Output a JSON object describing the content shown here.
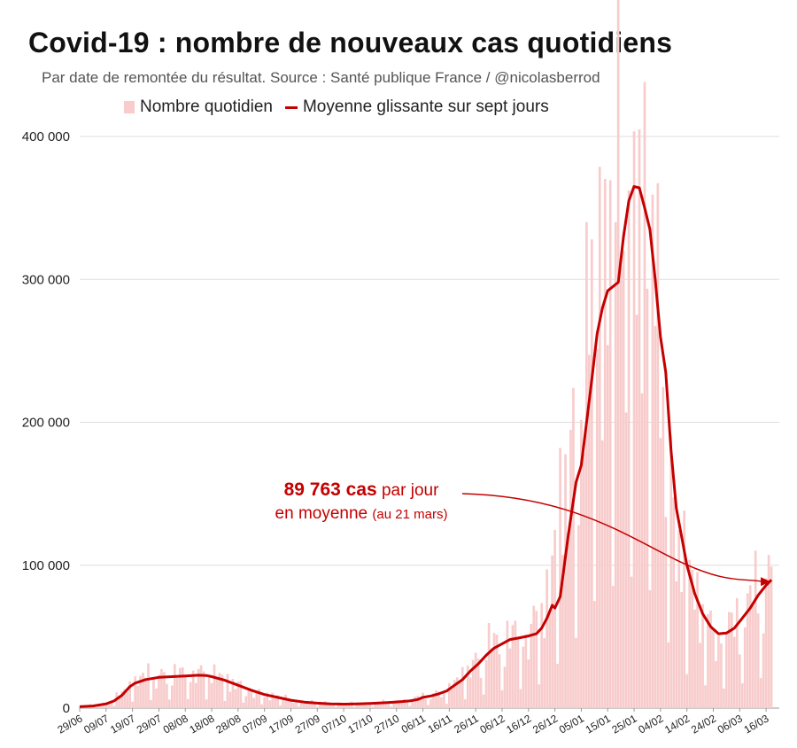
{
  "title": "Covid-19 : nombre de nouveaux cas quotidiens",
  "subtitle": "Par date de remontée du résultat. Source : Santé publique France / @nicolasberrod",
  "legend": {
    "bars": "Nombre quotidien",
    "line": "Moyenne glissante sur sept jours"
  },
  "annotation": {
    "value": "89 763 cas",
    "text1": "par jour",
    "text2": "en moyenne",
    "note": "(au 21 mars)"
  },
  "colors": {
    "bar": "#f8cccc",
    "line": "#c40000",
    "grid": "#dddddd"
  },
  "chart_data": {
    "type": "bar",
    "title": "Covid-19 : nombre de nouveaux cas quotidiens",
    "ylim": [
      0,
      400000
    ],
    "yticks": [
      {
        "value": 0,
        "label": "0"
      },
      {
        "value": 100000,
        "label": "100 000"
      },
      {
        "value": 200000,
        "label": "200 000"
      },
      {
        "value": 300000,
        "label": "300 000"
      },
      {
        "value": 400000,
        "label": "400 000"
      }
    ],
    "xticks": [
      {
        "day": 0,
        "label": "29/06"
      },
      {
        "day": 10,
        "label": "09/07"
      },
      {
        "day": 20,
        "label": "19/07"
      },
      {
        "day": 30,
        "label": "29/07"
      },
      {
        "day": 40,
        "label": "08/08"
      },
      {
        "day": 50,
        "label": "18/08"
      },
      {
        "day": 60,
        "label": "28/08"
      },
      {
        "day": 70,
        "label": "07/09"
      },
      {
        "day": 80,
        "label": "17/09"
      },
      {
        "day": 90,
        "label": "27/09"
      },
      {
        "day": 100,
        "label": "07/10"
      },
      {
        "day": 110,
        "label": "17/10"
      },
      {
        "day": 120,
        "label": "27/10"
      },
      {
        "day": 130,
        "label": "06/11"
      },
      {
        "day": 140,
        "label": "16/11"
      },
      {
        "day": 150,
        "label": "26/11"
      },
      {
        "day": 160,
        "label": "06/12"
      },
      {
        "day": 170,
        "label": "16/12"
      },
      {
        "day": 180,
        "label": "26/12"
      },
      {
        "day": 190,
        "label": "05/01"
      },
      {
        "day": 200,
        "label": "15/01"
      },
      {
        "day": 210,
        "label": "25/01"
      },
      {
        "day": 220,
        "label": "04/02"
      },
      {
        "day": 230,
        "label": "14/02"
      },
      {
        "day": 240,
        "label": "24/02"
      },
      {
        "day": 250,
        "label": "06/03"
      },
      {
        "day": 260,
        "label": "16/03"
      }
    ],
    "xmax_day": 265,
    "series": [
      {
        "name": "Moyenne glissante sur sept jours",
        "type": "line",
        "points": [
          [
            0,
            1000
          ],
          [
            5,
            1500
          ],
          [
            10,
            3000
          ],
          [
            13,
            5000
          ],
          [
            16,
            9000
          ],
          [
            19,
            15000
          ],
          [
            21,
            17500
          ],
          [
            25,
            20000
          ],
          [
            30,
            21500
          ],
          [
            35,
            22000
          ],
          [
            40,
            22500
          ],
          [
            45,
            23000
          ],
          [
            48,
            22800
          ],
          [
            50,
            22000
          ],
          [
            55,
            19500
          ],
          [
            60,
            16000
          ],
          [
            65,
            12500
          ],
          [
            70,
            9500
          ],
          [
            75,
            7500
          ],
          [
            80,
            5500
          ],
          [
            85,
            4200
          ],
          [
            90,
            3500
          ],
          [
            95,
            3000
          ],
          [
            100,
            2800
          ],
          [
            105,
            2900
          ],
          [
            110,
            3200
          ],
          [
            115,
            3700
          ],
          [
            120,
            4300
          ],
          [
            123,
            4700
          ],
          [
            125,
            5000
          ],
          [
            128,
            6000
          ],
          [
            130,
            7500
          ],
          [
            133,
            8500
          ],
          [
            136,
            10000
          ],
          [
            139,
            12000
          ],
          [
            142,
            16000
          ],
          [
            145,
            20000
          ],
          [
            148,
            26000
          ],
          [
            151,
            31000
          ],
          [
            154,
            37000
          ],
          [
            157,
            42000
          ],
          [
            160,
            45000
          ],
          [
            163,
            48000
          ],
          [
            166,
            49000
          ],
          [
            170,
            50500
          ],
          [
            173,
            52000
          ],
          [
            175,
            56000
          ],
          [
            177,
            63000
          ],
          [
            179,
            72000
          ],
          [
            180,
            70000
          ],
          [
            182,
            78000
          ],
          [
            185,
            120000
          ],
          [
            188,
            158000
          ],
          [
            190,
            170000
          ],
          [
            192,
            200000
          ],
          [
            194,
            230000
          ],
          [
            196,
            262000
          ],
          [
            198,
            280000
          ],
          [
            200,
            292000
          ],
          [
            202,
            295000
          ],
          [
            204,
            298000
          ],
          [
            206,
            330000
          ],
          [
            208,
            355000
          ],
          [
            210,
            365000
          ],
          [
            212,
            364000
          ],
          [
            214,
            350000
          ],
          [
            216,
            335000
          ],
          [
            218,
            300000
          ],
          [
            220,
            260000
          ],
          [
            222,
            235000
          ],
          [
            224,
            180000
          ],
          [
            226,
            140000
          ],
          [
            228,
            120000
          ],
          [
            230,
            100000
          ],
          [
            233,
            80000
          ],
          [
            236,
            66000
          ],
          [
            239,
            57000
          ],
          [
            242,
            52000
          ],
          [
            245,
            52500
          ],
          [
            248,
            56000
          ],
          [
            251,
            63000
          ],
          [
            254,
            70000
          ],
          [
            257,
            79000
          ],
          [
            260,
            86000
          ],
          [
            262,
            89763
          ]
        ]
      },
      {
        "name": "Nombre quotidien",
        "type": "bar",
        "profile": [
          [
            0,
            1200
          ],
          [
            10,
            3500
          ],
          [
            16,
            10000
          ],
          [
            20,
            18000
          ],
          [
            25,
            22000
          ],
          [
            35,
            24000
          ],
          [
            45,
            26000
          ],
          [
            50,
            23000
          ],
          [
            60,
            17000
          ],
          [
            70,
            10000
          ],
          [
            80,
            6000
          ],
          [
            90,
            4000
          ],
          [
            100,
            3200
          ],
          [
            110,
            3500
          ],
          [
            120,
            4800
          ],
          [
            130,
            8000
          ],
          [
            140,
            13000
          ],
          [
            150,
            33000
          ],
          [
            160,
            50000
          ],
          [
            170,
            55000
          ],
          [
            178,
            78000
          ],
          [
            184,
            170000
          ],
          [
            190,
            210000
          ],
          [
            195,
            300000
          ],
          [
            200,
            330000
          ],
          [
            205,
            360000
          ],
          [
            210,
            370000
          ],
          [
            215,
            350000
          ],
          [
            220,
            250000
          ],
          [
            225,
            140000
          ],
          [
            230,
            95000
          ],
          [
            235,
            70000
          ],
          [
            240,
            55000
          ],
          [
            245,
            55000
          ],
          [
            250,
            68000
          ],
          [
            255,
            75000
          ],
          [
            260,
            90000
          ],
          [
            262,
            92000
          ]
        ]
      }
    ]
  }
}
